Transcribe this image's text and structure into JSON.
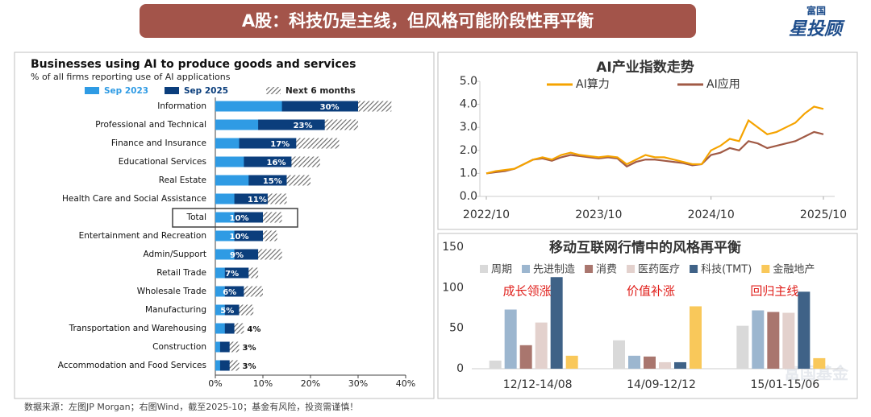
{
  "header": {
    "title": "A股：科技仍是主线，但风格可能阶段性再平衡"
  },
  "logo": {
    "brand": "富国",
    "product": "星投顾"
  },
  "watermark": "富国基金",
  "footer": {
    "source": "数据来源：左图JP Morgan；右图Wind，截至2025-10；基金有风险，投资需谨慎！"
  },
  "chart_data": [
    {
      "type": "barh",
      "title": "Businesses using AI to produce goods and services",
      "subtitle": "% of all firms reporting use of AI applications",
      "categories": [
        "Information",
        "Professional and Technical",
        "Finance and Insurance",
        "Educational Services",
        "Real Estate",
        "Health Care and Social Assistance",
        "Total",
        "Entertainment and Recreation",
        "Admin/Support",
        "Retail Trade",
        "Wholesale Trade",
        "Manufacturing",
        "Transportation and Warehousing",
        "Construction",
        "Accommodation and Food Services"
      ],
      "series": [
        {
          "name": "Next 6 months",
          "color": "#7f7f7f",
          "pattern": "hatch",
          "values": [
            37,
            30,
            26,
            22,
            20,
            15,
            14,
            13,
            14,
            9,
            10,
            8,
            6,
            5,
            5
          ]
        },
        {
          "name": "Sep 2025",
          "color": "#0b3e7c",
          "values": [
            30,
            23,
            17,
            16,
            15,
            11,
            10,
            10,
            9,
            7,
            6,
            5,
            4,
            3,
            3
          ],
          "value_labels": [
            "30%",
            "23%",
            "17%",
            "16%",
            "15%",
            "11%",
            "10%",
            "10%",
            "9%",
            "7%",
            "6%",
            "5%",
            "4%",
            "3%",
            "3%"
          ]
        },
        {
          "name": "Sep 2023",
          "color": "#2f9be4",
          "values": [
            14,
            9,
            5,
            6,
            7,
            4,
            4,
            4,
            4,
            2,
            2,
            2,
            2,
            1,
            1
          ]
        }
      ],
      "legend_order": [
        2,
        1,
        0
      ],
      "xlim": [
        0,
        40
      ],
      "xticks": [
        {
          "value": 0,
          "label": "0%"
        },
        {
          "value": 10,
          "label": "10%"
        },
        {
          "value": 20,
          "label": "20%"
        },
        {
          "value": 30,
          "label": "30%"
        },
        {
          "value": 40,
          "label": "40%"
        }
      ]
    },
    {
      "type": "line",
      "title": "AI产业指数走势",
      "x": [
        "2022/10",
        "2022/11",
        "2022/12",
        "2023/01",
        "2023/02",
        "2023/03",
        "2023/04",
        "2023/05",
        "2023/06",
        "2023/07",
        "2023/08",
        "2023/09",
        "2023/10",
        "2023/11",
        "2023/12",
        "2024/01",
        "2024/02",
        "2024/03",
        "2024/04",
        "2024/05",
        "2024/06",
        "2024/07",
        "2024/08",
        "2024/09",
        "2024/10",
        "2024/11",
        "2024/12",
        "2025/01",
        "2025/02",
        "2025/03",
        "2025/04",
        "2025/05",
        "2025/06",
        "2025/07",
        "2025/08",
        "2025/09",
        "2025/10"
      ],
      "series": [
        {
          "name": "AI算力",
          "color": "#f5a300",
          "values": [
            1.0,
            1.1,
            1.15,
            1.2,
            1.4,
            1.6,
            1.7,
            1.6,
            1.8,
            1.9,
            1.8,
            1.75,
            1.7,
            1.75,
            1.7,
            1.4,
            1.6,
            1.8,
            1.7,
            1.7,
            1.6,
            1.5,
            1.4,
            1.4,
            2.0,
            2.2,
            2.5,
            2.4,
            3.3,
            3.0,
            2.7,
            2.8,
            3.0,
            3.2,
            3.6,
            3.9,
            3.8
          ]
        },
        {
          "name": "AI应用",
          "color": "#a15a45",
          "values": [
            1.0,
            1.05,
            1.1,
            1.2,
            1.4,
            1.6,
            1.65,
            1.55,
            1.7,
            1.8,
            1.75,
            1.7,
            1.65,
            1.7,
            1.65,
            1.3,
            1.5,
            1.6,
            1.6,
            1.55,
            1.5,
            1.45,
            1.35,
            1.4,
            1.8,
            1.9,
            2.1,
            2.0,
            2.4,
            2.3,
            2.1,
            2.2,
            2.3,
            2.4,
            2.6,
            2.8,
            2.7
          ]
        }
      ],
      "ylim": [
        0,
        5
      ],
      "yticks": [
        {
          "value": 0,
          "label": "0.0"
        },
        {
          "value": 1,
          "label": "1.0"
        },
        {
          "value": 2,
          "label": "2.0"
        },
        {
          "value": 3,
          "label": "3.0"
        },
        {
          "value": 4,
          "label": "4.0"
        },
        {
          "value": 5,
          "label": "5.0"
        }
      ],
      "xticks": [
        "2022/10",
        "2023/10",
        "2024/10",
        "2025/10"
      ]
    },
    {
      "type": "bar",
      "title": "移动互联网行情中的风格再平衡",
      "categories": [
        "12/12-14/08",
        "14/09-12/12",
        "15/01-15/06"
      ],
      "annotations": [
        "成长领涨",
        "价值补涨",
        "回归主线"
      ],
      "series": [
        {
          "name": "周期",
          "color": "#d9d9d9",
          "values": [
            10,
            35,
            53
          ]
        },
        {
          "name": "先进制造",
          "color": "#9cb6cf",
          "values": [
            73,
            16,
            72
          ]
        },
        {
          "name": "消费",
          "color": "#a9766e",
          "values": [
            29,
            15,
            70
          ]
        },
        {
          "name": "医药医疗",
          "color": "#e3d1cd",
          "values": [
            57,
            8,
            69
          ]
        },
        {
          "name": "科技(TMT)",
          "color": "#3f6287",
          "values": [
            113,
            8,
            95
          ]
        },
        {
          "name": "金融地产",
          "color": "#f9c85a",
          "values": [
            16,
            77,
            13
          ]
        }
      ],
      "ylim": [
        0,
        150
      ],
      "yticks": [
        0,
        50,
        100,
        150
      ]
    }
  ]
}
